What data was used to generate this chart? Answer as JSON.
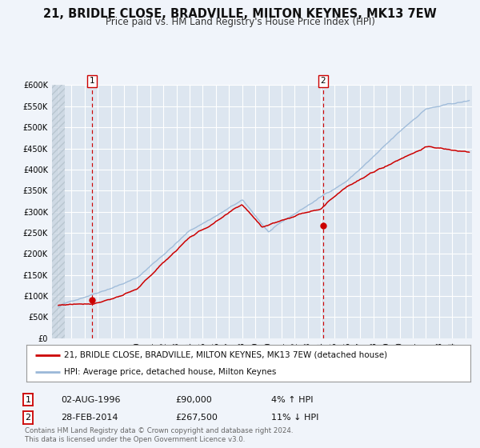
{
  "title": "21, BRIDLE CLOSE, BRADVILLE, MILTON KEYNES, MK13 7EW",
  "subtitle": "Price paid vs. HM Land Registry's House Price Index (HPI)",
  "ylim": [
    0,
    600000
  ],
  "yticks": [
    0,
    50000,
    100000,
    150000,
    200000,
    250000,
    300000,
    350000,
    400000,
    450000,
    500000,
    550000,
    600000
  ],
  "ytick_labels": [
    "£0",
    "£50K",
    "£100K",
    "£150K",
    "£200K",
    "£250K",
    "£300K",
    "£350K",
    "£400K",
    "£450K",
    "£500K",
    "£550K",
    "£600K"
  ],
  "xlim_start": 1993.5,
  "xlim_end": 2025.5,
  "background_color": "#f0f4fa",
  "plot_bg_color": "#dde6f0",
  "grid_color": "#ffffff",
  "line1_color": "#cc0000",
  "line2_color": "#9ab8d8",
  "sale1_x": 1996.58,
  "sale1_y": 90000,
  "sale2_x": 2014.16,
  "sale2_y": 267500,
  "marker_color": "#cc0000",
  "vline_color": "#cc0000",
  "legend1_label": "21, BRIDLE CLOSE, BRADVILLE, MILTON KEYNES, MK13 7EW (detached house)",
  "legend2_label": "HPI: Average price, detached house, Milton Keynes",
  "annotation1_date": "02-AUG-1996",
  "annotation1_price": "£90,000",
  "annotation1_hpi": "4% ↑ HPI",
  "annotation2_date": "28-FEB-2014",
  "annotation2_price": "£267,500",
  "annotation2_hpi": "11% ↓ HPI",
  "footer": "Contains HM Land Registry data © Crown copyright and database right 2024.\nThis data is licensed under the Open Government Licence v3.0.",
  "title_fontsize": 10.5,
  "subtitle_fontsize": 8.5,
  "tick_fontsize": 7,
  "legend_fontsize": 7.5,
  "annotation_fontsize": 8,
  "footer_fontsize": 6.2
}
